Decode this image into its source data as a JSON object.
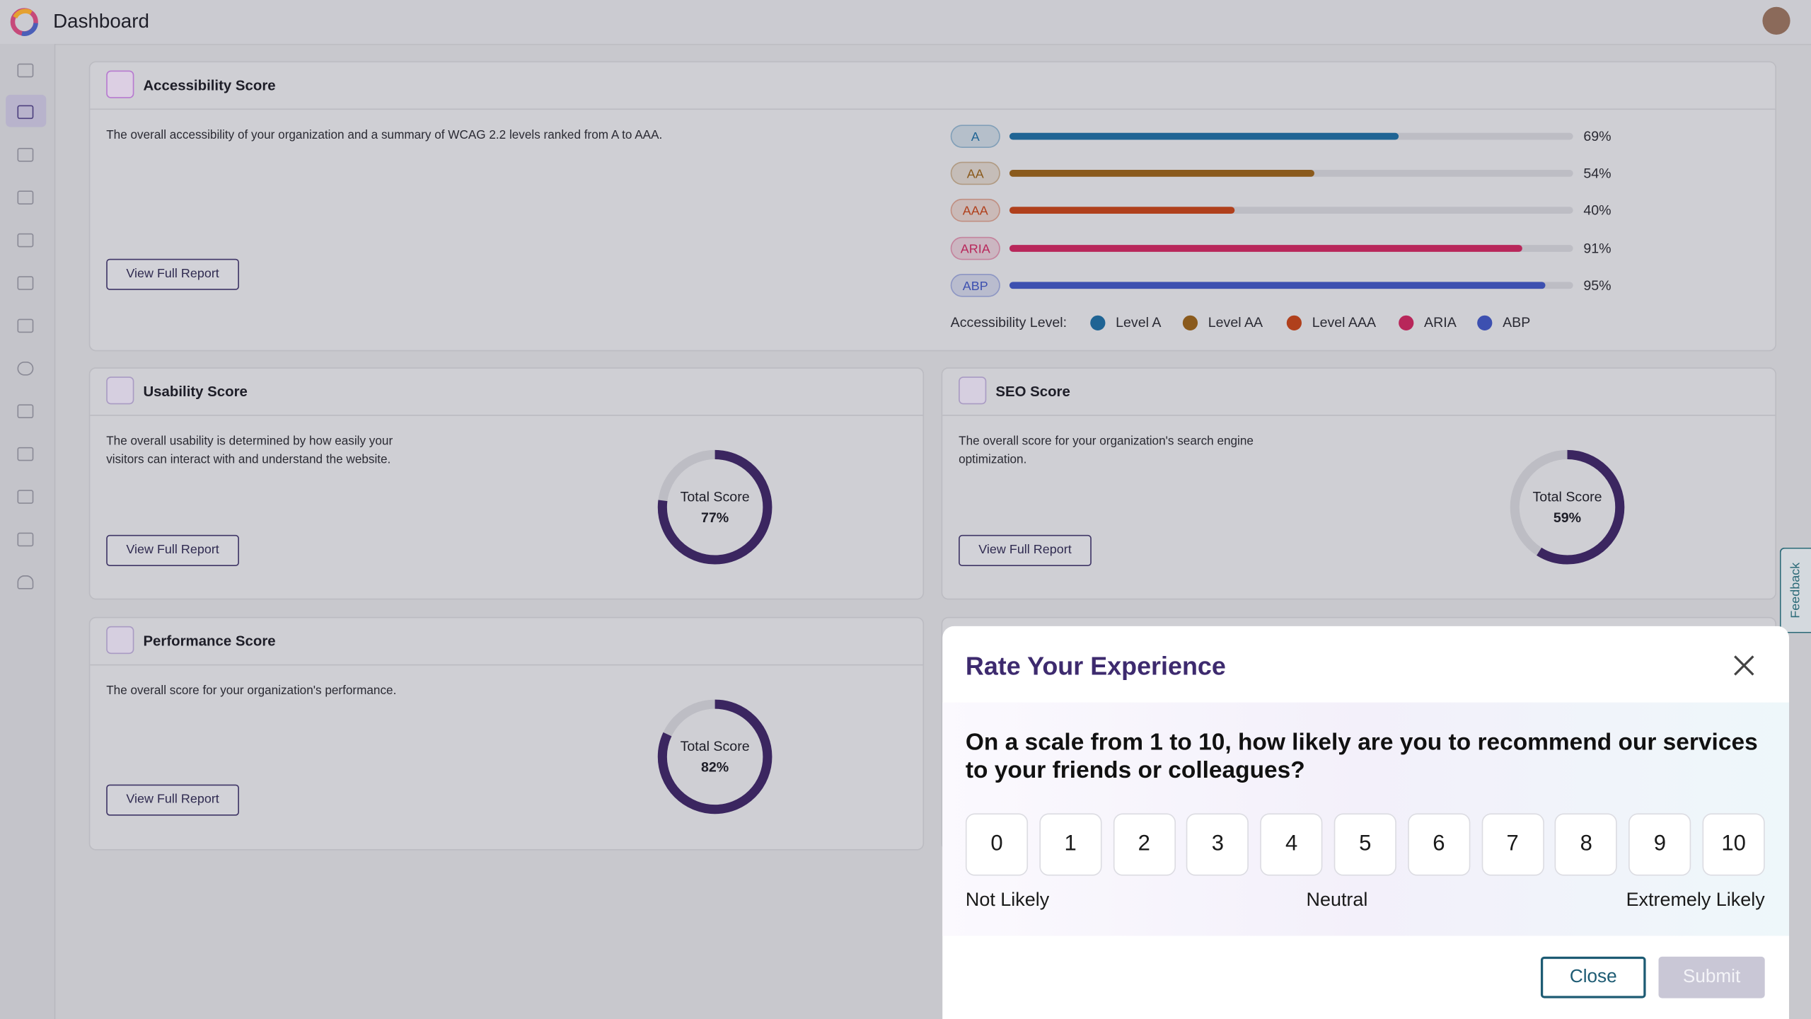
{
  "header": {
    "title": "Dashboard"
  },
  "accessibility": {
    "title": "Accessibility Score",
    "description": "The overall accessibility of your organization and a summary of WCAG 2.2 levels ranked from A to AAA.",
    "button": "View Full Report",
    "levels": [
      {
        "badge": "A",
        "value": 69,
        "label": "69%",
        "color": "#1f6494"
      },
      {
        "badge": "AA",
        "value": 54,
        "label": "54%",
        "color": "#8a5a1c"
      },
      {
        "badge": "AAA",
        "value": 40,
        "label": "40%",
        "color": "#b0401c"
      },
      {
        "badge": "ARIA",
        "value": 91,
        "label": "91%",
        "color": "#b8265a"
      },
      {
        "badge": "ABP",
        "value": 95,
        "label": "95%",
        "color": "#3d50b0"
      }
    ],
    "legend_title": "Accessibility Level:",
    "legend": [
      "Level A",
      "Level AA",
      "Level AAA",
      "ARIA",
      "ABP"
    ]
  },
  "cards": [
    {
      "title": "Usability Score",
      "description": "The overall usability is determined by how easily your visitors can interact with and understand the website.",
      "button": "View Full Report",
      "score_title": "Total Score",
      "value": 77,
      "label": "77%"
    },
    {
      "title": "SEO Score",
      "description": "The overall score for your organization's search engine optimization.",
      "button": "View Full Report",
      "score_title": "Total Score",
      "value": 59,
      "label": "59%"
    },
    {
      "title": "Performance Score",
      "description": "The overall score for your organization's performance.",
      "button": "View Full Report",
      "score_title": "Total Score",
      "value": 82,
      "label": "82%"
    }
  ],
  "feedback_tab": "Feedback",
  "modal": {
    "title": "Rate Your Experience",
    "question": "On a scale from 1 to 10, how likely are you to recommend our services to your friends or colleagues?",
    "scale": [
      0,
      1,
      2,
      3,
      4,
      5,
      6,
      7,
      8,
      9,
      10
    ],
    "low": "Not Likely",
    "mid": "Neutral",
    "high": "Extremely Likely",
    "close": "Close",
    "submit": "Submit"
  }
}
